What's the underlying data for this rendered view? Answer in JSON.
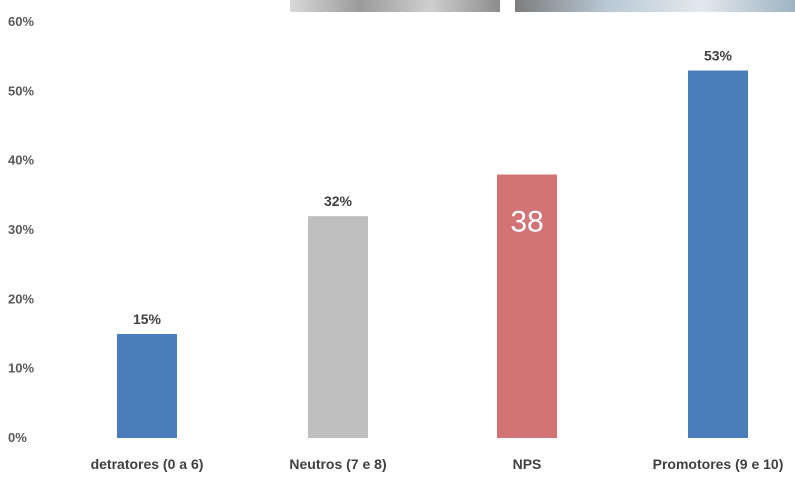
{
  "chart_data": {
    "type": "bar",
    "categories": [
      "detratores (0 a 6)",
      "Neutros (7 e 8)",
      "NPS",
      "Promotores (9 e 10)"
    ],
    "values": [
      15,
      32,
      38,
      53
    ],
    "value_labels": [
      "15%",
      "32%",
      "38",
      "53%"
    ],
    "label_position": [
      "above",
      "above",
      "inside",
      "above"
    ],
    "colors": [
      "#4a7ebb",
      "#bfbfbf",
      "#d27376",
      "#4a7ebb"
    ],
    "yticks": [
      "0%",
      "10%",
      "20%",
      "30%",
      "40%",
      "50%",
      "60%"
    ],
    "ylim": [
      0,
      60
    ],
    "grid": false,
    "legend": "none",
    "title": "",
    "xlabel": "",
    "ylabel": ""
  }
}
